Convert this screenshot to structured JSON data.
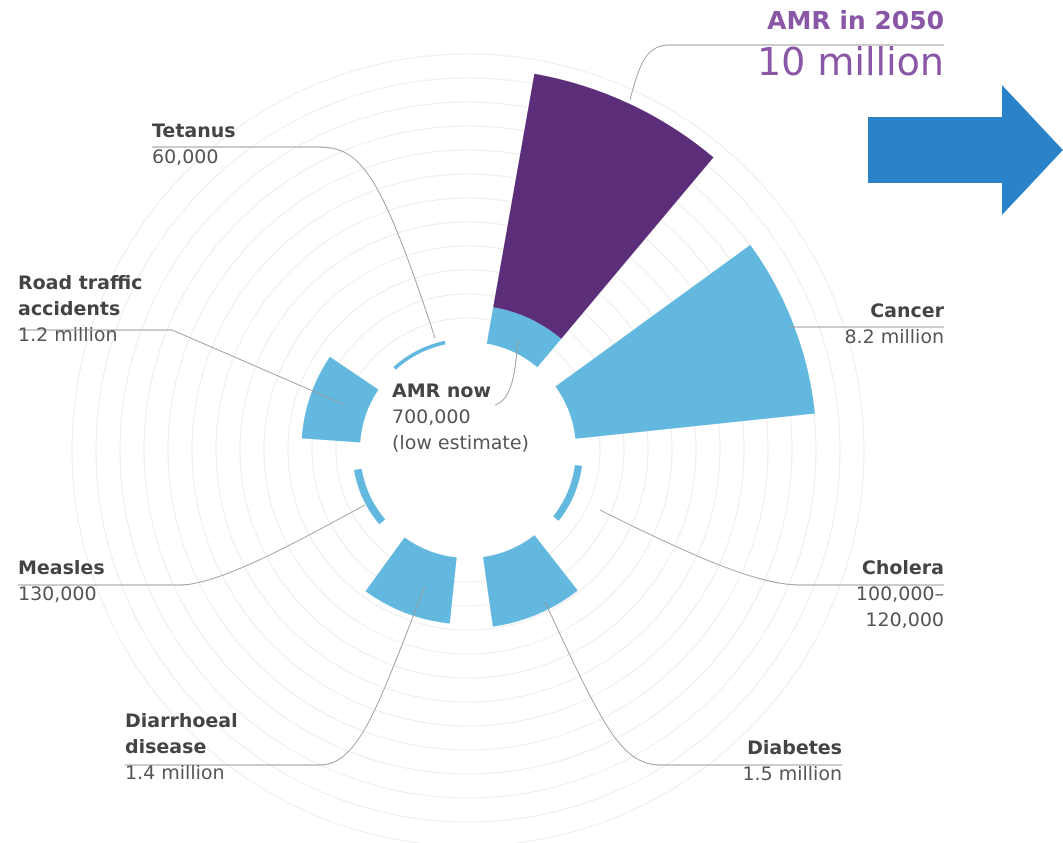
{
  "chart_data": {
    "type": "polar-area",
    "current": {
      "name": "AMR now",
      "value": 700000,
      "value_label": "700,000",
      "note": "(low estimate)",
      "color": "#63b8df"
    },
    "future": {
      "name": "AMR in 2050",
      "value": 10000000,
      "value_label": "10 million",
      "color": "#5c2d78"
    },
    "categories": [
      "Cancer",
      "Cholera",
      "Diabetes",
      "Diarrhoeal disease",
      "Measles",
      "Road traffic accidents",
      "Tetanus"
    ],
    "values": [
      8200000,
      120000,
      1500000,
      1400000,
      130000,
      1200000,
      60000
    ],
    "value_labels": [
      "8.2 million",
      "100,000–120,000",
      "1.5 million",
      "1.4 million",
      "130,000",
      "1.2 million",
      "60,000"
    ],
    "color": "#63b8df"
  }
}
